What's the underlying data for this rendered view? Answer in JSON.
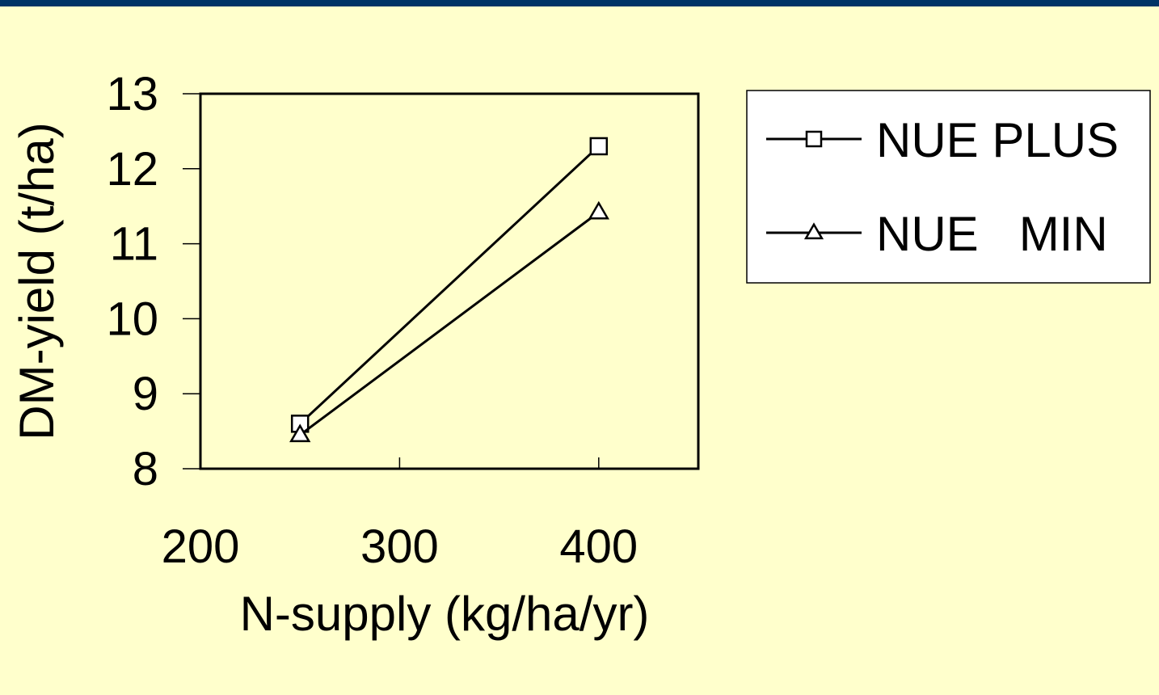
{
  "chart_data": {
    "type": "line",
    "xlabel": "N-supply (kg/ha/yr)",
    "ylabel": "DM-yield (t/ha)",
    "xlim": [
      200,
      450
    ],
    "ylim": [
      8,
      13
    ],
    "xticks": [
      200,
      300,
      400
    ],
    "yticks": [
      8,
      9,
      10,
      11,
      12,
      13
    ],
    "grid": false,
    "legend_position": "right",
    "series": [
      {
        "name": "NUE PLUS",
        "marker": "square",
        "x": [
          250,
          400
        ],
        "y": [
          8.6,
          12.3
        ]
      },
      {
        "name": "NUE   MIN",
        "marker": "triangle",
        "x": [
          250,
          400
        ],
        "y": [
          8.45,
          11.42
        ]
      }
    ]
  },
  "colors": {
    "background": "#ffffcc",
    "top_bar": "#003366",
    "ink": "#000000",
    "legend_fill": "#ffffff"
  }
}
